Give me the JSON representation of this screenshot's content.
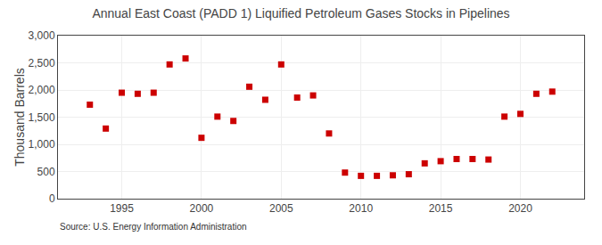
{
  "chart_data": {
    "type": "scatter",
    "title": "Annual East Coast (PADD 1) Liquified Petroleum Gases Stocks in Pipelines",
    "ylabel": "Thousand Barrels",
    "annotations": [
      "Source: U.S. Energy Information Administration"
    ],
    "x": [
      1993,
      1994,
      1995,
      1996,
      1997,
      1998,
      1999,
      2000,
      2001,
      2002,
      2003,
      2004,
      2005,
      2006,
      2007,
      2008,
      2009,
      2010,
      2011,
      2012,
      2013,
      2014,
      2015,
      2016,
      2017,
      2018,
      2019,
      2020,
      2021,
      2022
    ],
    "values": [
      1730,
      1290,
      1950,
      1930,
      1950,
      2470,
      2580,
      1120,
      1510,
      1430,
      2060,
      1820,
      2470,
      1860,
      1900,
      1200,
      480,
      420,
      420,
      430,
      450,
      650,
      690,
      730,
      730,
      720,
      1510,
      1560,
      1930,
      1970
    ],
    "color": "#cc0000",
    "marker": "square",
    "xlim": [
      1991,
      2024
    ],
    "xticks": [
      1995,
      2000,
      2005,
      2010,
      2015,
      2020
    ],
    "ylim": [
      0,
      3000
    ],
    "yticks": [
      0,
      500,
      {
        "value": 1000,
        "label": "1,000"
      },
      {
        "value": 1500,
        "label": "1,500"
      },
      {
        "value": 2000,
        "label": "2,000"
      },
      {
        "value": 2500,
        "label": "2,500"
      },
      {
        "value": 3000,
        "label": "3,000"
      }
    ],
    "grid": true
  }
}
